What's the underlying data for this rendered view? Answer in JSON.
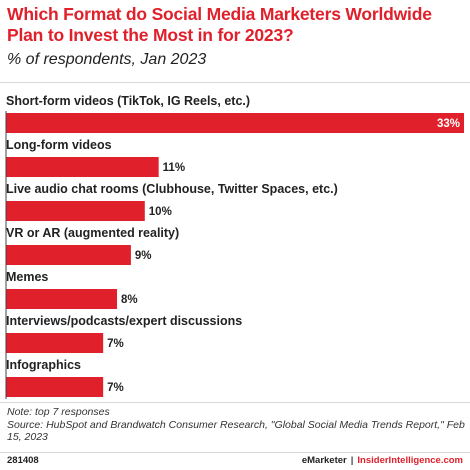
{
  "title": "Which Format do Social Media Marketers Worldwide Plan to Invest the Most in for 2023?",
  "subtitle": "% of respondents, Jan 2023",
  "note": "Note: top 7 responses",
  "source": "Source: HubSpot and Brandwatch Consumer Research, \"Global Social Media Trends Report,\" Feb 15, 2023",
  "footer": {
    "chart_id": "281408",
    "brand1": "eMarketer",
    "separator": "|",
    "brand2": "InsiderIntelligence.com"
  },
  "colors": {
    "accent": "#e0202b",
    "text": "#222222"
  },
  "chart_data": {
    "type": "bar",
    "orientation": "horizontal",
    "categories": [
      "Short-form videos (TikTok, IG Reels, etc.)",
      "Long-form videos",
      "Live audio chat rooms (Clubhouse, Twitter Spaces, etc.)",
      "VR or AR (augmented reality)",
      "Memes",
      "Interviews/podcasts/expert discussions",
      "Infographics"
    ],
    "values": [
      33,
      11,
      10,
      9,
      8,
      7,
      7
    ],
    "value_labels": [
      "33%",
      "11%",
      "10%",
      "9%",
      "8%",
      "7%",
      "7%"
    ],
    "xlim": [
      0,
      33
    ],
    "grid": false,
    "legend": "none"
  }
}
